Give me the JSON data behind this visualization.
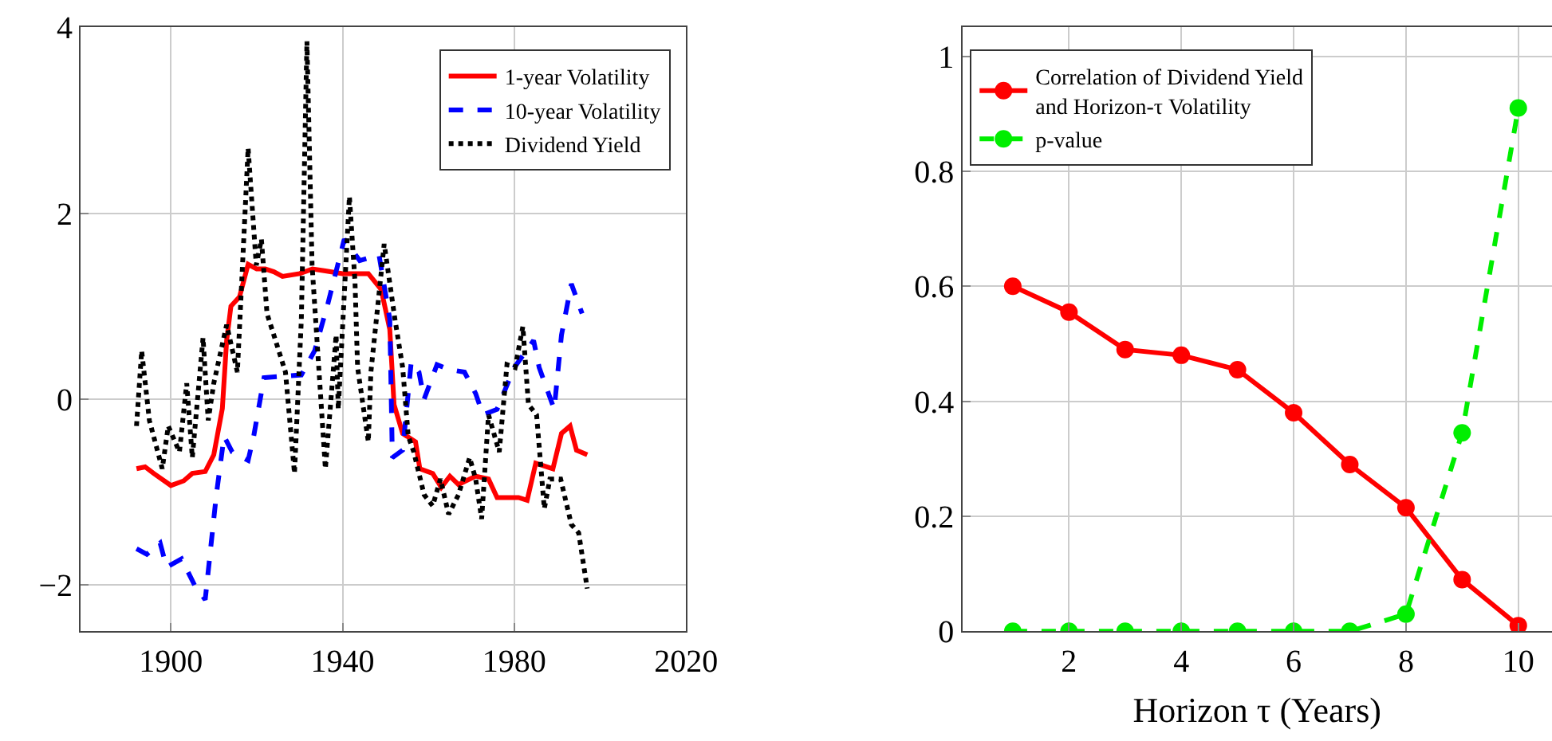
{
  "chart_data": [
    {
      "type": "line",
      "xlim": [
        1879,
        2020
      ],
      "ylim": [
        -2.5,
        4
      ],
      "xticks": [
        1900,
        1940,
        1980,
        2020
      ],
      "yticks": [
        -2,
        0,
        2,
        4
      ],
      "grid": true,
      "legend": "top right",
      "marker": "none",
      "series": [
        {
          "name": "1-year Volatility",
          "color": "#ff0000",
          "line_style": "solid",
          "x": [
            1892,
            1894,
            1896,
            1900,
            1903,
            1905,
            1908,
            1910,
            1912,
            1913,
            1914,
            1916,
            1918,
            1920,
            1922,
            1924,
            1926,
            1930,
            1933,
            1936,
            1940,
            1943,
            1946,
            1949,
            1951,
            1952,
            1954,
            1957,
            1958,
            1961,
            1963,
            1965,
            1967,
            1971,
            1974,
            1976,
            1981,
            1983,
            1985,
            1989,
            1991,
            1993,
            1994.5,
            1997
          ],
          "values": [
            -0.75,
            -0.73,
            -0.8,
            -0.93,
            -0.88,
            -0.8,
            -0.78,
            -0.6,
            -0.1,
            0.63,
            1.0,
            1.1,
            1.45,
            1.4,
            1.4,
            1.37,
            1.32,
            1.35,
            1.4,
            1.38,
            1.35,
            1.35,
            1.35,
            1.18,
            0.75,
            -0.06,
            -0.37,
            -0.46,
            -0.75,
            -0.8,
            -0.95,
            -0.83,
            -0.92,
            -0.83,
            -0.86,
            -1.06,
            -1.06,
            -1.09,
            -0.69,
            -0.75,
            -0.37,
            -0.29,
            -0.55,
            -0.6
          ]
        },
        {
          "name": "10-year Volatility",
          "color": "#0000ff",
          "line_style": "dashed",
          "x": [
            1892,
            1894.4,
            1897.5,
            1899,
            1902.5,
            1905.6,
            1908,
            1910.6,
            1912.4,
            1914.3,
            1918,
            1919.3,
            1921.7,
            1930.4,
            1933.5,
            1936.6,
            1940.4,
            1944,
            1948.5,
            1951,
            1951.6,
            1954,
            1956,
            1957.8,
            1959,
            1962,
            1964.7,
            1968.4,
            1971,
            1972.7,
            1976,
            1980,
            1984.5,
            1985.8,
            1989.3,
            1991,
            1993.3,
            1995.8
          ],
          "values": [
            -1.61,
            -1.67,
            -1.55,
            -1.81,
            -1.72,
            -2.01,
            -2.16,
            -1.03,
            -0.4,
            -0.57,
            -0.66,
            -0.4,
            0.23,
            0.26,
            0.52,
            1.03,
            1.72,
            1.49,
            1.55,
            0.86,
            -0.63,
            -0.55,
            0.4,
            0.29,
            0.0,
            0.37,
            0.32,
            0.29,
            0.06,
            -0.17,
            -0.11,
            0.34,
            0.63,
            0.34,
            -0.11,
            0.69,
            1.24,
            0.92
          ]
        },
        {
          "name": "Dividend Yield",
          "color": "#000000",
          "line_style": "dotted",
          "x": [
            1892,
            1893.2,
            1895,
            1898,
            1899.4,
            1902,
            1903.7,
            1905,
            1907.5,
            1908.7,
            1910,
            1913,
            1915.5,
            1918,
            1919.9,
            1921.1,
            1922.4,
            1924.8,
            1926.7,
            1928.8,
            1930.4,
            1931.7,
            1932.9,
            1936,
            1938.5,
            1939,
            1941.6,
            1942.9,
            1943.5,
            1946,
            1946.6,
            1949.7,
            1952.2,
            1954,
            1955.3,
            1956.6,
            1959,
            1961,
            1962.8,
            1964.7,
            1967,
            1969.6,
            1971,
            1972.4,
            1974,
            1976.5,
            1978.3,
            1980.2,
            1982,
            1983.3,
            1985.2,
            1987,
            1988.3,
            1990.8,
            1993.3,
            1995,
            1997
          ],
          "values": [
            -0.29,
            0.52,
            -0.23,
            -0.75,
            -0.29,
            -0.57,
            0.17,
            -0.63,
            0.66,
            -0.23,
            0.17,
            0.8,
            0.29,
            2.7,
            1.44,
            1.72,
            0.92,
            0.57,
            0.29,
            -0.8,
            0.86,
            3.85,
            1.44,
            -0.75,
            0.69,
            -0.11,
            2.18,
            1.26,
            0.34,
            -0.46,
            0.29,
            1.67,
            0.86,
            0.34,
            -0.4,
            -0.57,
            -1.03,
            -1.15,
            -0.86,
            -1.24,
            -1.03,
            -0.63,
            -0.86,
            -1.29,
            -0.17,
            -0.57,
            0.37,
            0.34,
            0.78,
            -0.06,
            -0.17,
            -1.18,
            -0.86,
            -0.86,
            -1.35,
            -1.44,
            -2.04
          ]
        }
      ]
    },
    {
      "type": "line",
      "xlabel": "Horizon τ (Years)",
      "xlim": [
        0.1,
        10.6
      ],
      "ylim": [
        0,
        1.05
      ],
      "xticks": [
        2,
        4,
        6,
        8,
        10
      ],
      "yticks": [
        0,
        0.2,
        0.4,
        0.6,
        0.8,
        1
      ],
      "grid": true,
      "legend": "top left",
      "marker": "circle",
      "x": [
        1,
        2,
        3,
        4,
        5,
        6,
        7,
        8,
        9,
        10
      ],
      "series": [
        {
          "name": "Correlation of Dividend Yield and Horizon-τ Volatility",
          "color": "#ff0000",
          "line_style": "solid",
          "values": [
            0.6,
            0.555,
            0.49,
            0.48,
            0.455,
            0.38,
            0.29,
            0.215,
            0.09,
            0.01
          ]
        },
        {
          "name": "p-value",
          "color": "#00ee00",
          "line_style": "dashed",
          "values": [
            0,
            0,
            0,
            0,
            0,
            0,
            0,
            0.03,
            0.345,
            0.91
          ]
        }
      ]
    }
  ]
}
